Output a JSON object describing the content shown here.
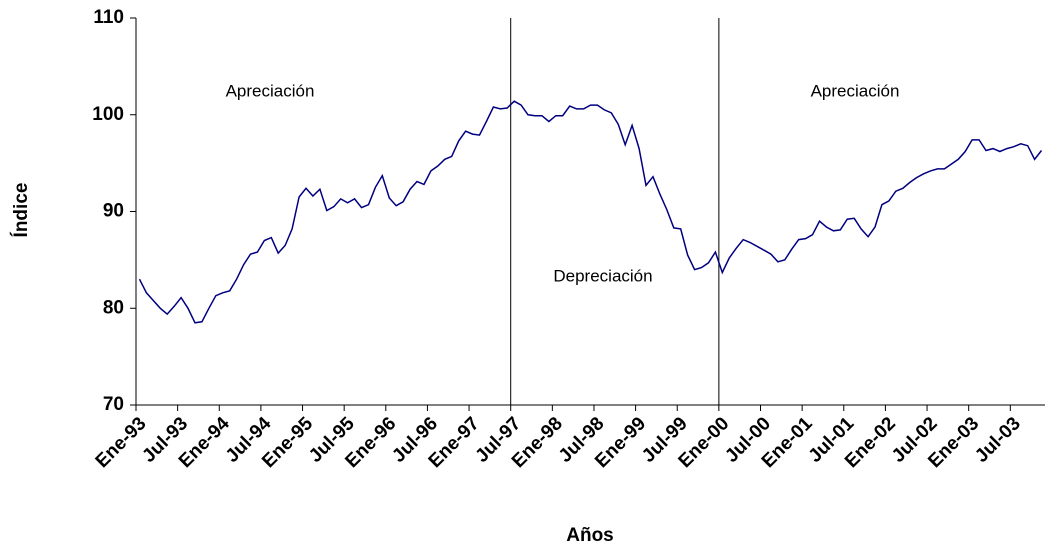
{
  "chart_data": {
    "type": "line",
    "x_label": "Años",
    "y_label": "Índice",
    "categories": [
      "Ene-93",
      null,
      null,
      null,
      null,
      null,
      "Jul-93",
      null,
      null,
      null,
      null,
      null,
      "Ene-94",
      null,
      null,
      null,
      null,
      null,
      "Jul-94",
      null,
      null,
      null,
      null,
      null,
      "Ene-95",
      null,
      null,
      null,
      null,
      null,
      "Jul-95",
      null,
      null,
      null,
      null,
      null,
      "Ene-96",
      null,
      null,
      null,
      null,
      null,
      "Jul-96",
      null,
      null,
      null,
      null,
      null,
      "Ene-97",
      null,
      null,
      null,
      null,
      null,
      "Jul-97",
      null,
      null,
      null,
      null,
      null,
      "Ene-98",
      null,
      null,
      null,
      null,
      null,
      "Jul-98",
      null,
      null,
      null,
      null,
      null,
      "Ene-99",
      null,
      null,
      null,
      null,
      null,
      "Jul-99",
      null,
      null,
      null,
      null,
      null,
      "Ene-00",
      null,
      null,
      null,
      null,
      null,
      "Jul-00",
      null,
      null,
      null,
      null,
      null,
      "Ene-01",
      null,
      null,
      null,
      null,
      null,
      "Jul-01",
      null,
      null,
      null,
      null,
      null,
      "Ene-02",
      null,
      null,
      null,
      null,
      null,
      "Jul-02",
      null,
      null,
      null,
      null,
      null,
      "Ene-03",
      null,
      null,
      null,
      null,
      null,
      "Jul-03",
      null,
      null,
      null,
      null
    ],
    "series": [
      {
        "name": "Índice",
        "color": "#000080",
        "values": [
          83.0,
          81.6,
          80.8,
          80.0,
          79.4,
          80.2,
          81.1,
          80.0,
          78.5,
          78.6,
          80.0,
          81.3,
          81.6,
          81.8,
          83.0,
          84.5,
          85.6,
          85.8,
          87.0,
          87.3,
          85.7,
          86.5,
          88.2,
          91.5,
          92.4,
          91.6,
          92.3,
          90.1,
          90.5,
          91.3,
          90.9,
          91.3,
          90.4,
          90.7,
          92.5,
          93.7,
          91.4,
          90.6,
          91.0,
          92.3,
          93.1,
          92.8,
          94.2,
          94.7,
          95.4,
          95.7,
          97.3,
          98.3,
          98.0,
          97.9,
          99.3,
          100.8,
          100.6,
          100.7,
          101.4,
          101.0,
          100.0,
          99.9,
          99.9,
          99.3,
          99.9,
          99.9,
          100.9,
          100.6,
          100.6,
          101.0,
          101.0,
          100.5,
          100.2,
          99.0,
          96.9,
          98.9,
          96.5,
          92.7,
          93.6,
          91.8,
          90.2,
          88.3,
          88.2,
          85.5,
          84.0,
          84.2,
          84.7,
          85.8,
          83.7,
          85.2,
          86.2,
          87.1,
          86.8,
          86.4,
          86.0,
          85.6,
          84.8,
          85.0,
          86.1,
          87.1,
          87.2,
          87.6,
          89.0,
          88.4,
          88.0,
          88.1,
          89.2,
          89.3,
          88.2,
          87.4,
          88.4,
          90.7,
          91.1,
          92.1,
          92.4,
          93.0,
          93.5,
          93.9,
          94.2,
          94.4,
          94.4,
          94.9,
          95.4,
          96.2,
          97.4,
          97.4,
          96.3,
          96.5,
          96.2,
          96.5,
          96.7,
          97.0,
          96.8,
          95.4,
          96.3
        ]
      }
    ],
    "ylim": [
      70,
      110
    ],
    "yticks": [
      70,
      80,
      90,
      100,
      110
    ],
    "grid": false,
    "dividers": [
      "Jul-97",
      "Ene-00"
    ],
    "annotations": [
      "Apreciación",
      "Depreciación",
      "Apreciación"
    ]
  }
}
